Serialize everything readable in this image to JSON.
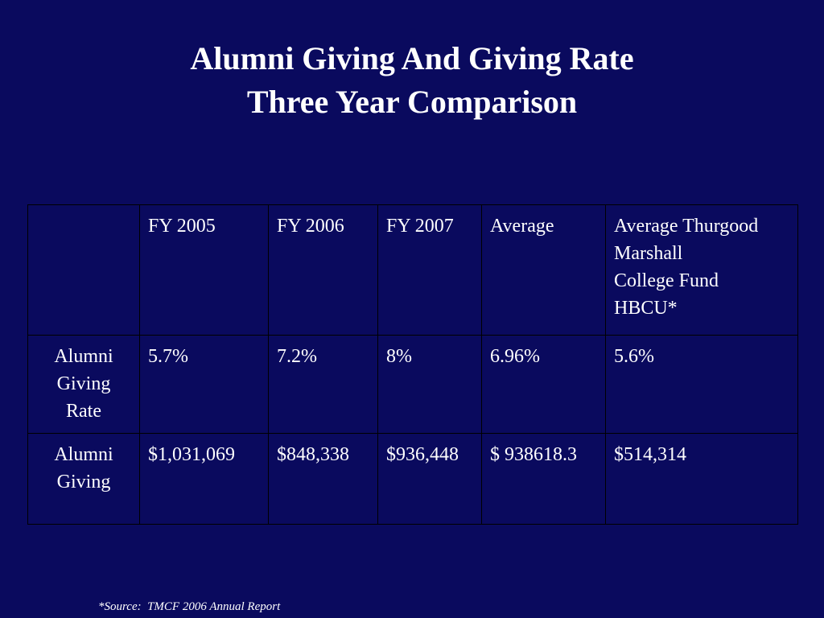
{
  "title": {
    "line1": "Alumni Giving And Giving Rate",
    "line2": "Three Year Comparison"
  },
  "table": {
    "headers": {
      "blank": "",
      "fy2005": "FY 2005",
      "fy2006": "FY 2006",
      "fy2007": "FY 2007",
      "average": "Average",
      "hbcu": {
        "line1": "Average Thurgood",
        "line2": "Marshall",
        "line3": "College Fund",
        "line4": "HBCU*"
      }
    },
    "giving_rate": {
      "label": {
        "line1": "Alumni",
        "line2": "Giving",
        "line3": "Rate"
      },
      "fy2005": "5.7%",
      "fy2006": "7.2%",
      "fy2007": "8%",
      "average": "6.96%",
      "hbcu": "5.6%"
    },
    "giving": {
      "label": {
        "line1": "Alumni",
        "line2": "Giving"
      },
      "fy2005": "$1,031,069",
      "fy2006": "$848,338",
      "fy2007": "$936,448",
      "average": "$ 938618.3",
      "hbcu": "$514,314"
    }
  },
  "footer": {
    "source": "*Source:  TMCF 2006 Annual Report"
  },
  "colors": {
    "background": "#0a0a5e",
    "text": "#ffffff",
    "grid": "#000000"
  }
}
